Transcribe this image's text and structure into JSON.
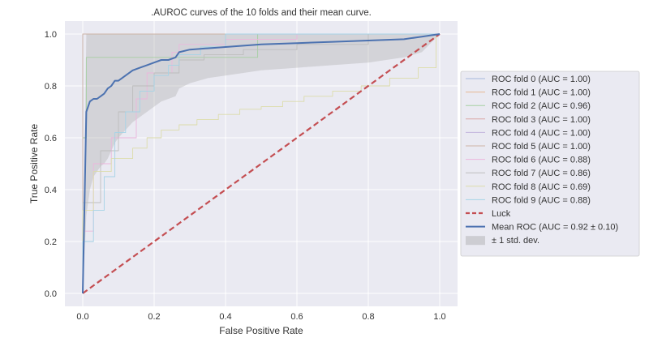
{
  "chart_data": {
    "type": "line",
    "title": ".AUROC curves of the 10 folds and their mean curve.",
    "xlabel": "False Positive Rate",
    "ylabel": "True Positive Rate",
    "xlim": [
      -0.05,
      1.05
    ],
    "ylim": [
      -0.05,
      1.05
    ],
    "x_ticks": [
      0.0,
      0.2,
      0.4,
      0.6,
      0.8,
      1.0
    ],
    "y_ticks": [
      0.0,
      0.2,
      0.4,
      0.6,
      0.8,
      1.0
    ],
    "x_tick_labels": [
      "0.0",
      "0.2",
      "0.4",
      "0.6",
      "0.8",
      "1.0"
    ],
    "y_tick_labels": [
      "0.0",
      "0.2",
      "0.4",
      "0.6",
      "0.8",
      "1.0"
    ],
    "grid": true,
    "legend_position": "right, outside plot",
    "background_color": "#eaeaf2",
    "series": [
      {
        "name": "ROC fold 0 (AUC = 1.00)",
        "color": "#a7b8dc",
        "x": [
          0,
          0,
          1
        ],
        "y": [
          0,
          1,
          1
        ]
      },
      {
        "name": "ROC fold 1 (AUC = 1.00)",
        "color": "#e6b892",
        "x": [
          0,
          0,
          1
        ],
        "y": [
          0,
          1,
          1
        ]
      },
      {
        "name": "ROC fold 2 (AUC = 0.96)",
        "color": "#a6cfa2",
        "x": [
          0,
          0,
          0.01,
          0.01,
          0.49,
          0.49,
          1
        ],
        "y": [
          0,
          0.6,
          0.6,
          0.91,
          0.91,
          1,
          1
        ]
      },
      {
        "name": "ROC fold 3 (AUC = 1.00)",
        "color": "#d9a5a5",
        "x": [
          0,
          0,
          1
        ],
        "y": [
          0,
          1,
          1
        ]
      },
      {
        "name": "ROC fold 4 (AUC = 1.00)",
        "color": "#c3b5dd",
        "x": [
          0,
          0,
          1
        ],
        "y": [
          0,
          1,
          1
        ]
      },
      {
        "name": "ROC fold 5 (AUC = 1.00)",
        "color": "#cdb4a5",
        "x": [
          0,
          0,
          1
        ],
        "y": [
          0,
          1,
          1
        ]
      },
      {
        "name": "ROC fold 6 (AUC = 0.88)",
        "color": "#ecb6dc",
        "x": [
          0,
          0,
          0.03,
          0.03,
          0.08,
          0.08,
          0.15,
          0.15,
          0.18,
          0.18,
          0.25,
          0.25,
          0.27,
          0.27,
          0.4,
          0.4,
          0.6,
          0.6,
          1
        ],
        "y": [
          0,
          0.24,
          0.24,
          0.5,
          0.5,
          0.6,
          0.6,
          0.75,
          0.75,
          0.85,
          0.85,
          0.93,
          0.93,
          0.96,
          0.96,
          0.98,
          0.98,
          1,
          1
        ]
      },
      {
        "name": "ROC fold 7 (AUC = 0.86)",
        "color": "#bdbdbd",
        "x": [
          0,
          0,
          0.05,
          0.05,
          0.1,
          0.1,
          0.14,
          0.14,
          0.2,
          0.2,
          0.27,
          0.27,
          0.34,
          0.34,
          0.45,
          0.45,
          0.6,
          0.6,
          0.8,
          0.8,
          1
        ],
        "y": [
          0,
          0.35,
          0.35,
          0.55,
          0.55,
          0.7,
          0.7,
          0.8,
          0.8,
          0.85,
          0.85,
          0.9,
          0.9,
          0.92,
          0.92,
          0.94,
          0.94,
          0.96,
          0.96,
          1,
          1
        ]
      },
      {
        "name": "ROC fold 8 (AUC = 0.69)",
        "color": "#dcdcaa",
        "x": [
          0,
          0,
          0.03,
          0.03,
          0.08,
          0.08,
          0.14,
          0.14,
          0.18,
          0.18,
          0.22,
          0.22,
          0.27,
          0.27,
          0.32,
          0.32,
          0.38,
          0.38,
          0.44,
          0.44,
          0.5,
          0.5,
          0.56,
          0.56,
          0.62,
          0.62,
          0.7,
          0.7,
          0.78,
          0.78,
          0.86,
          0.86,
          0.94,
          0.94,
          0.99,
          0.99,
          1
        ],
        "y": [
          0,
          0.32,
          0.32,
          0.47,
          0.47,
          0.52,
          0.52,
          0.56,
          0.56,
          0.6,
          0.6,
          0.63,
          0.63,
          0.65,
          0.65,
          0.67,
          0.67,
          0.69,
          0.69,
          0.71,
          0.71,
          0.72,
          0.72,
          0.74,
          0.74,
          0.76,
          0.76,
          0.78,
          0.78,
          0.8,
          0.8,
          0.83,
          0.83,
          0.87,
          0.87,
          1,
          1
        ]
      },
      {
        "name": "ROC fold 9 (AUC = 0.88)",
        "color": "#a5d3e6",
        "x": [
          0,
          0,
          0.03,
          0.03,
          0.06,
          0.06,
          0.09,
          0.09,
          0.12,
          0.12,
          0.16,
          0.16,
          0.2,
          0.2,
          0.24,
          0.24,
          0.27,
          0.27,
          0.33,
          0.33,
          0.4,
          0.4,
          1
        ],
        "y": [
          0,
          0.2,
          0.2,
          0.32,
          0.32,
          0.45,
          0.45,
          0.62,
          0.62,
          0.7,
          0.7,
          0.78,
          0.78,
          0.84,
          0.84,
          0.88,
          0.88,
          0.92,
          0.92,
          0.95,
          0.95,
          1,
          1
        ]
      },
      {
        "name": "Luck",
        "color": "#c44e52",
        "style": "dashed",
        "x": [
          0,
          1
        ],
        "y": [
          0,
          1
        ]
      },
      {
        "name": "Mean ROC (AUC = 0.92 ± 0.10)",
        "color": "#4c72b0",
        "x": [
          0,
          0.01,
          0.02,
          0.03,
          0.04,
          0.05,
          0.06,
          0.07,
          0.08,
          0.09,
          0.1,
          0.12,
          0.14,
          0.16,
          0.18,
          0.2,
          0.22,
          0.24,
          0.26,
          0.27,
          0.3,
          0.35,
          0.4,
          0.45,
          0.5,
          0.6,
          0.7,
          0.8,
          0.9,
          0.95,
          1.0
        ],
        "y": [
          0,
          0.7,
          0.74,
          0.75,
          0.75,
          0.76,
          0.77,
          0.79,
          0.8,
          0.82,
          0.82,
          0.84,
          0.86,
          0.87,
          0.88,
          0.89,
          0.9,
          0.9,
          0.91,
          0.93,
          0.94,
          0.945,
          0.95,
          0.955,
          0.96,
          0.965,
          0.97,
          0.975,
          0.98,
          0.99,
          1.0
        ]
      },
      {
        "name": "± 1 std. dev.",
        "color": "#aaaaaa",
        "type": "band",
        "x": [
          0,
          0.01,
          0.02,
          0.03,
          0.04,
          0.05,
          0.06,
          0.07,
          0.08,
          0.09,
          0.1,
          0.12,
          0.14,
          0.16,
          0.18,
          0.2,
          0.22,
          0.24,
          0.26,
          0.27,
          0.3,
          0.35,
          0.4,
          0.45,
          0.5,
          0.6,
          0.7,
          0.8,
          0.9,
          0.95,
          1.0
        ],
        "lower": [
          0,
          0.3,
          0.4,
          0.45,
          0.47,
          0.49,
          0.5,
          0.52,
          0.55,
          0.58,
          0.6,
          0.63,
          0.66,
          0.68,
          0.7,
          0.72,
          0.74,
          0.75,
          0.76,
          0.79,
          0.81,
          0.83,
          0.84,
          0.85,
          0.86,
          0.87,
          0.88,
          0.89,
          0.91,
          0.93,
          1.0
        ],
        "upper": [
          0,
          1.0,
          1.0,
          1.0,
          1.0,
          1.0,
          1.0,
          1.0,
          1.0,
          1.0,
          1.0,
          1.0,
          1.0,
          1.0,
          1.0,
          1.0,
          1.0,
          1.0,
          1.0,
          1.0,
          1.0,
          1.0,
          1.0,
          1.0,
          1.0,
          1.0,
          1.0,
          1.0,
          1.0,
          1.0,
          1.0
        ]
      }
    ]
  }
}
